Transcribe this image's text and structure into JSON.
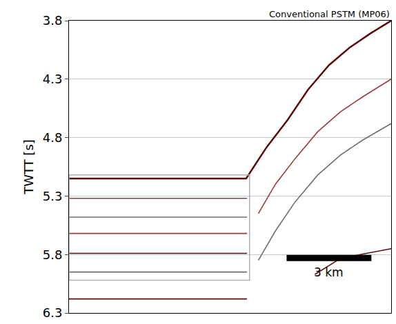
{
  "chart_data": {
    "type": "line",
    "title": "Conventional PSTM (MP06)",
    "y_label": "TWTT [s]",
    "xlim": [
      0,
      11.4
    ],
    "ylim": [
      6.3,
      3.8
    ],
    "yticks": [
      3.8,
      4.3,
      4.8,
      5.3,
      5.8,
      6.3
    ],
    "grid": true,
    "tick_labels": "y",
    "series": [
      {
        "color": "#5a0c0c",
        "line_style": "solid",
        "x": [
          0,
          6.27,
          6.51,
          7.0,
          7.73,
          8.46,
          9.2,
          9.93,
          10.66,
          11.4
        ],
        "values": [
          5.15,
          5.15,
          5.06,
          4.88,
          4.65,
          4.39,
          4.18,
          4.03,
          3.91,
          3.8
        ]
      },
      {
        "color": "#9a3a3a",
        "line_style": "solid",
        "x": [
          0,
          6.3
        ],
        "values": [
          5.32,
          5.32
        ]
      },
      {
        "color": "#6e6e6e",
        "line_style": "solid",
        "x": [
          0,
          6.3
        ],
        "values": [
          5.48,
          5.48
        ]
      },
      {
        "color": "#9a3a3a",
        "line_style": "solid",
        "x": [
          0,
          6.3
        ],
        "values": [
          5.62,
          5.62
        ]
      },
      {
        "color": "#5a0c0c",
        "line_style": "solid",
        "x": [
          0,
          6.3
        ],
        "values": [
          5.79,
          5.79
        ]
      },
      {
        "color": "#6e6e6e",
        "line_style": "solid",
        "x": [
          0,
          6.3
        ],
        "values": [
          5.95,
          5.95
        ]
      },
      {
        "color": "#5a0c0c",
        "line_style": "solid",
        "x": [
          0,
          6.3
        ],
        "values": [
          6.18,
          6.18
        ]
      },
      {
        "color": "#9a3a3a",
        "line_style": "solid",
        "x": [
          6.7,
          7.3,
          8.0,
          8.8,
          9.6,
          10.4,
          11.4
        ],
        "values": [
          5.45,
          5.2,
          4.98,
          4.75,
          4.58,
          4.45,
          4.3
        ]
      },
      {
        "color": "#6e6e6e",
        "line_style": "solid",
        "x": [
          6.7,
          7.3,
          8.0,
          8.8,
          9.6,
          10.4,
          11.4
        ],
        "values": [
          5.85,
          5.6,
          5.35,
          5.12,
          4.95,
          4.82,
          4.68
        ]
      },
      {
        "color": "#5a0c0c",
        "line_style": "solid",
        "x": [
          8.7,
          9.5,
          10.3,
          11.4
        ],
        "values": [
          5.97,
          5.85,
          5.8,
          5.75
        ]
      }
    ],
    "highlight_box": {
      "x0": 0,
      "x1": 6.39,
      "y0": 5.12,
      "y1": 6.02,
      "color": "#b0b0b0"
    },
    "scale_bar": {
      "x0": 7.7,
      "x1": 10.7,
      "y": 5.83,
      "label": "3 km",
      "label_y": 5.95,
      "color": "#000000"
    }
  }
}
